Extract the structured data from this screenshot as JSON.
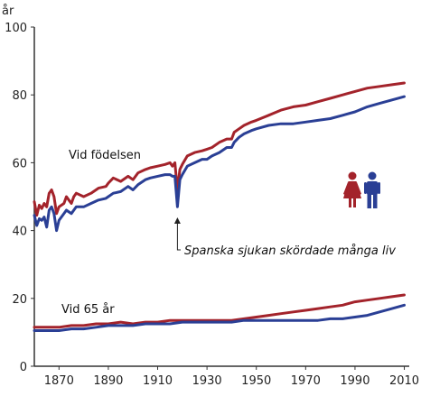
{
  "chart_data": {
    "type": "line",
    "title": "",
    "ylabel": "år",
    "xlabel": "",
    "xlim": [
      1860,
      2012
    ],
    "ylim": [
      0,
      100
    ],
    "xticks": [
      "1870",
      "1890",
      "1910",
      "1930",
      "1950",
      "1970",
      "1990",
      "2010"
    ],
    "yticks": [
      "0",
      "20",
      "40",
      "60",
      "80",
      "100"
    ],
    "grid": false,
    "colors": {
      "women": "#a3232b",
      "men": "#2a3f95",
      "axis": "#333333"
    },
    "series_labels": {
      "birth": "Vid födelsen",
      "age65": "Vid 65 år"
    },
    "annotation": {
      "text": "Spanska sjukan skördade många liv",
      "x": 1918,
      "y": 46
    },
    "legend_icons": [
      "woman-icon",
      "man-icon"
    ],
    "series": [
      {
        "group": "birth",
        "sex": "women",
        "x": [
          1860,
          1861,
          1862,
          1863,
          1864,
          1865,
          1866,
          1867,
          1868,
          1869,
          1870,
          1872,
          1873,
          1874,
          1875,
          1876,
          1877,
          1880,
          1883,
          1886,
          1889,
          1890,
          1892,
          1895,
          1898,
          1900,
          1902,
          1905,
          1907,
          1910,
          1913,
          1915,
          1916,
          1917,
          1918,
          1919,
          1920,
          1922,
          1925,
          1928,
          1930,
          1932,
          1935,
          1938,
          1940,
          1941,
          1943,
          1945,
          1948,
          1950,
          1955,
          1960,
          1965,
          1970,
          1975,
          1980,
          1985,
          1990,
          1995,
          2000,
          2005,
          2010
        ],
        "y": [
          48.5,
          44.5,
          47.5,
          46.5,
          48,
          47,
          51,
          52,
          50,
          45,
          47,
          48,
          50,
          49,
          48,
          50,
          51,
          50,
          51,
          52.5,
          53,
          54,
          55.5,
          54.5,
          56,
          55,
          57,
          58,
          58.5,
          59,
          59.5,
          60,
          59,
          60,
          52,
          58,
          59.5,
          62,
          63,
          63.5,
          64,
          64.5,
          66,
          67,
          67,
          69,
          70,
          71,
          72,
          72.5,
          74,
          75.5,
          76.5,
          77,
          78,
          79,
          80,
          81,
          82,
          82.5,
          83,
          83.5
        ]
      },
      {
        "group": "birth",
        "sex": "men",
        "x": [
          1860,
          1861,
          1862,
          1863,
          1864,
          1865,
          1866,
          1867,
          1868,
          1869,
          1870,
          1872,
          1873,
          1874,
          1875,
          1876,
          1877,
          1880,
          1883,
          1886,
          1889,
          1890,
          1892,
          1895,
          1898,
          1900,
          1902,
          1905,
          1907,
          1910,
          1913,
          1915,
          1916,
          1917,
          1918,
          1919,
          1920,
          1922,
          1925,
          1928,
          1930,
          1932,
          1935,
          1938,
          1940,
          1941,
          1943,
          1945,
          1948,
          1950,
          1955,
          1960,
          1965,
          1970,
          1975,
          1980,
          1985,
          1990,
          1995,
          2000,
          2005,
          2010
        ],
        "y": [
          44.5,
          41.5,
          43.5,
          43,
          44,
          41,
          46,
          47,
          45,
          40,
          43,
          45,
          46,
          45.5,
          45,
          46,
          47,
          47,
          48,
          49,
          49.5,
          50,
          51,
          51.5,
          53,
          52,
          53.5,
          55,
          55.5,
          56,
          56.5,
          56.5,
          56,
          56,
          47,
          55,
          56.5,
          59,
          60,
          61,
          61,
          62,
          63,
          64.5,
          64.5,
          66,
          67.5,
          68.5,
          69.5,
          70,
          71,
          71.5,
          71.5,
          72,
          72.5,
          73,
          74,
          75,
          76.5,
          77.5,
          78.5,
          79.5
        ]
      },
      {
        "group": "age65",
        "sex": "women",
        "x": [
          1860,
          1865,
          1870,
          1875,
          1880,
          1885,
          1890,
          1895,
          1900,
          1905,
          1910,
          1915,
          1920,
          1925,
          1930,
          1935,
          1940,
          1945,
          1950,
          1955,
          1960,
          1965,
          1970,
          1975,
          1980,
          1985,
          1990,
          1995,
          2000,
          2005,
          2010
        ],
        "y": [
          11.5,
          11.5,
          11.5,
          12,
          12,
          12.5,
          12.5,
          13,
          12.5,
          13,
          13,
          13.5,
          13.5,
          13.5,
          13.5,
          13.5,
          13.5,
          14,
          14.5,
          15,
          15.5,
          16,
          16.5,
          17,
          17.5,
          18,
          19,
          19.5,
          20,
          20.5,
          21
        ]
      },
      {
        "group": "age65",
        "sex": "men",
        "x": [
          1860,
          1865,
          1870,
          1875,
          1880,
          1885,
          1890,
          1895,
          1900,
          1905,
          1910,
          1915,
          1920,
          1925,
          1930,
          1935,
          1940,
          1945,
          1950,
          1955,
          1960,
          1965,
          1970,
          1975,
          1980,
          1985,
          1990,
          1995,
          2000,
          2005,
          2010
        ],
        "y": [
          10.5,
          10.5,
          10.5,
          11,
          11,
          11.5,
          12,
          12,
          12,
          12.5,
          12.5,
          12.5,
          13,
          13,
          13,
          13,
          13,
          13.5,
          13.5,
          13.5,
          13.5,
          13.5,
          13.5,
          13.5,
          14,
          14,
          14.5,
          15,
          16,
          17,
          18
        ]
      }
    ]
  }
}
